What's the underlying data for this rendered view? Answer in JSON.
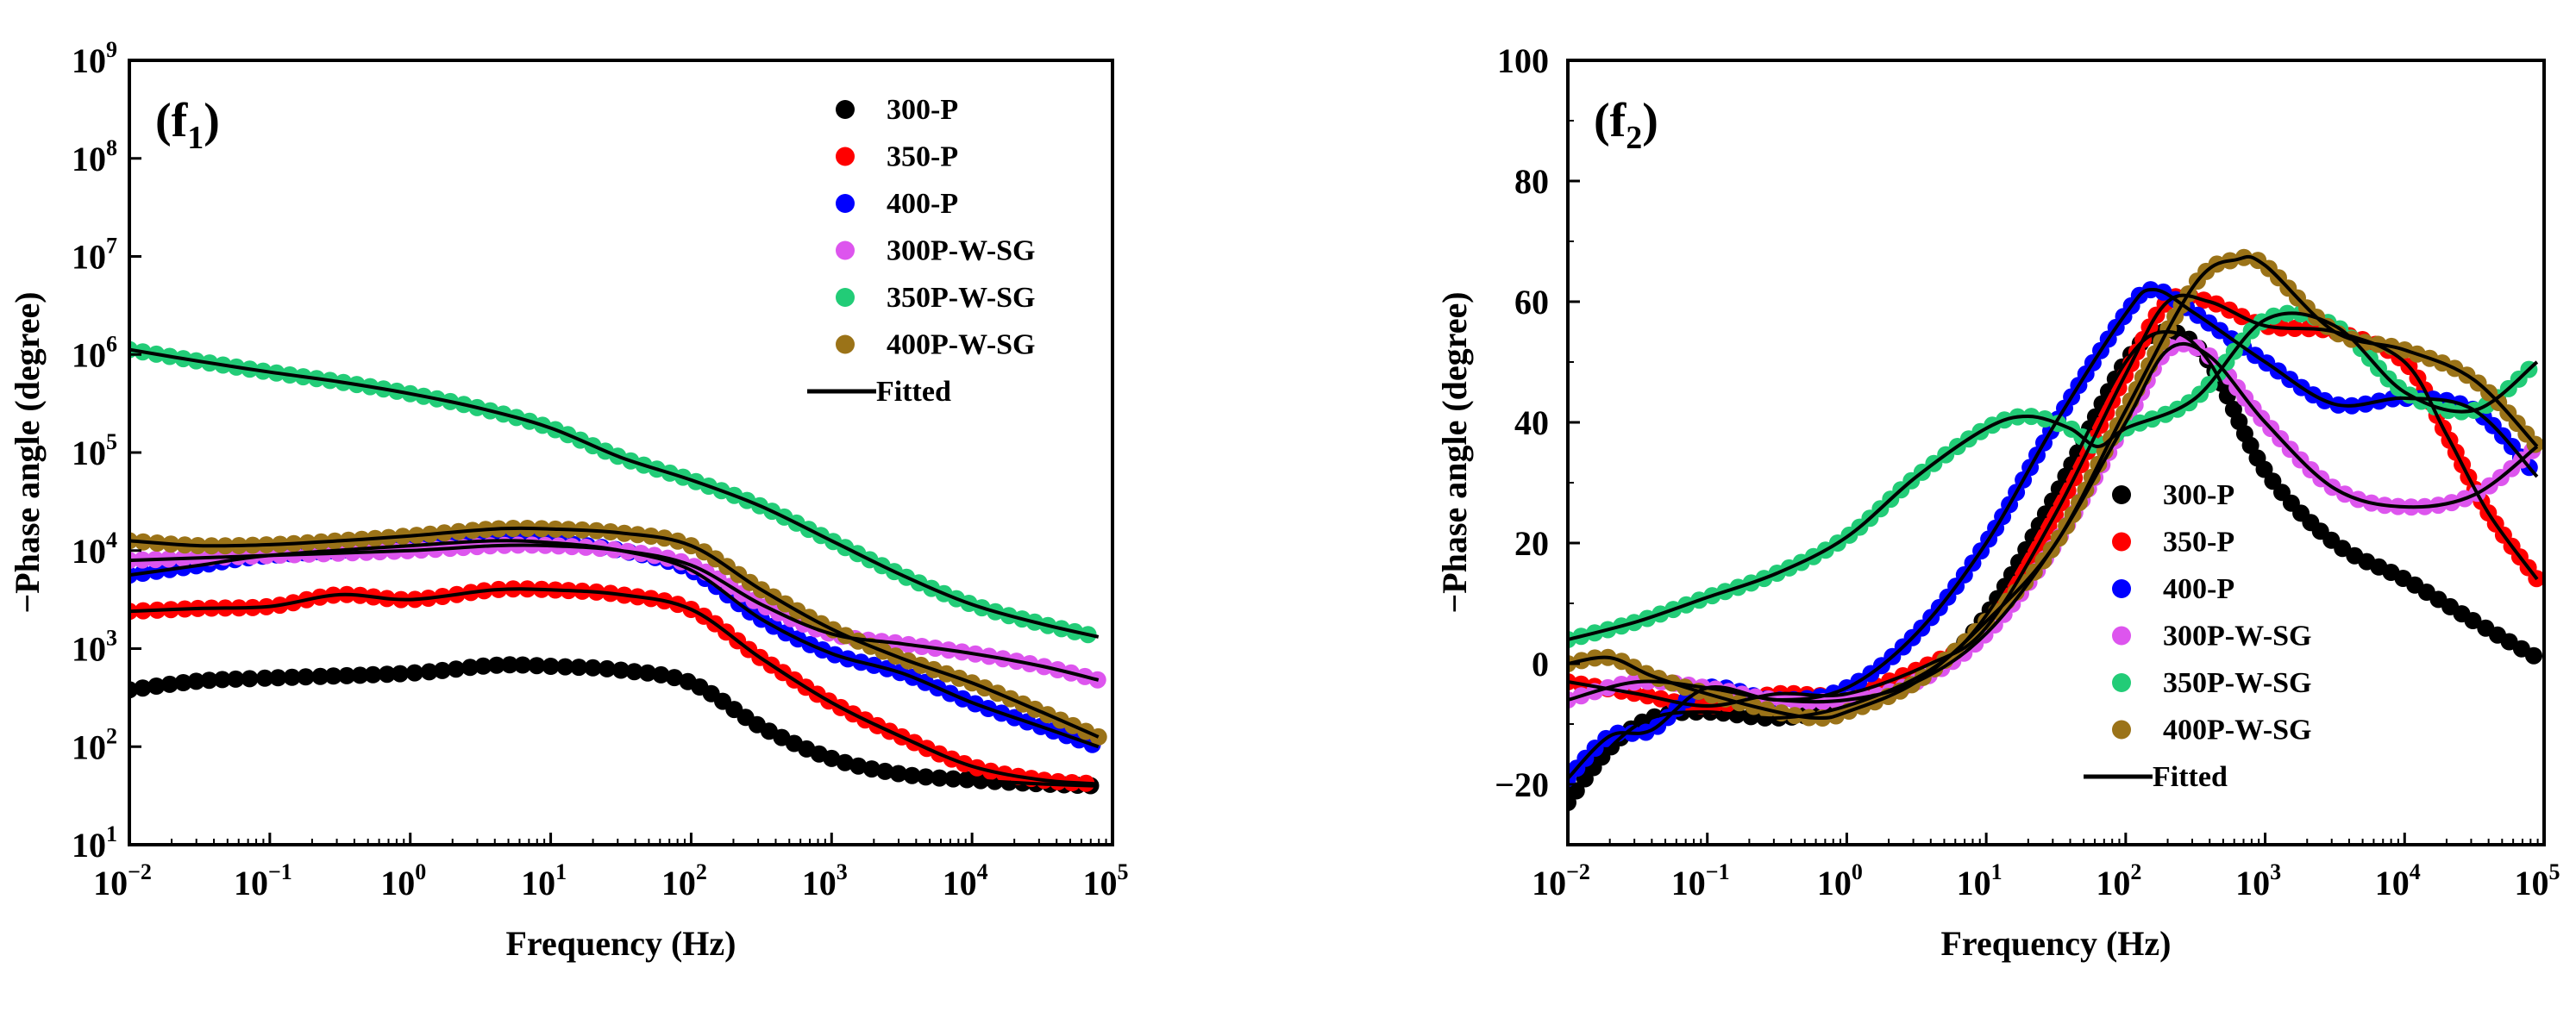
{
  "chart_data": [
    {
      "type": "scatter",
      "panel_label_main": "(f",
      "panel_label_sub": "1",
      "panel_label_end": ")",
      "xlabel": "Frequency (Hz)",
      "ylabel": "−Phase angle (degree)",
      "x_scale": "log",
      "y_scale": "log",
      "xlim_exp": [
        -2,
        5
      ],
      "ylim_exp": [
        1,
        9
      ],
      "x_ticks": [
        {
          "base": "10",
          "exp": "−2"
        },
        {
          "base": "10",
          "exp": "−1"
        },
        {
          "base": "10",
          "exp": "0"
        },
        {
          "base": "10",
          "exp": "1"
        },
        {
          "base": "10",
          "exp": "2"
        },
        {
          "base": "10",
          "exp": "3"
        },
        {
          "base": "10",
          "exp": "4"
        },
        {
          "base": "10",
          "exp": "5"
        }
      ],
      "y_ticks": [
        {
          "base": "10",
          "exp": "1"
        },
        {
          "base": "10",
          "exp": "2"
        },
        {
          "base": "10",
          "exp": "3"
        },
        {
          "base": "10",
          "exp": "4"
        },
        {
          "base": "10",
          "exp": "5"
        },
        {
          "base": "10",
          "exp": "6"
        },
        {
          "base": "10",
          "exp": "7"
        },
        {
          "base": "10",
          "exp": "8"
        },
        {
          "base": "10",
          "exp": "9"
        }
      ],
      "legend_position": "top-right",
      "legend": [
        "300-P",
        "350-P",
        "400-P",
        "300P-W-SG",
        "350P-W-SG",
        "400P-W-SG",
        "Fitted"
      ],
      "series": [
        {
          "name": "300-P",
          "color": "#000000",
          "logx": [
            -2,
            -1.5,
            -1,
            0,
            0.6,
            1,
            1.5,
            2,
            2.5,
            3,
            3.5,
            4,
            4.5,
            4.9
          ],
          "y_exp": [
            2.58,
            2.67,
            2.7,
            2.75,
            2.83,
            2.82,
            2.78,
            2.65,
            2.2,
            1.88,
            1.72,
            1.66,
            1.62,
            1.6
          ]
        },
        {
          "name": "350-P",
          "color": "#ff0000",
          "logx": [
            -2,
            -1.5,
            -1,
            -0.5,
            0,
            0.6,
            1,
            1.5,
            2,
            2.5,
            3,
            3.5,
            4,
            4.5,
            4.9
          ],
          "y_exp": [
            3.38,
            3.41,
            3.43,
            3.55,
            3.5,
            3.6,
            3.6,
            3.55,
            3.4,
            2.9,
            2.45,
            2.1,
            1.8,
            1.66,
            1.62
          ]
        },
        {
          "name": "400-P",
          "color": "#0000ff",
          "logx": [
            -2,
            -1.5,
            -1,
            0,
            0.6,
            1,
            1.5,
            2,
            2.5,
            3,
            3.5,
            4,
            4.5,
            4.9
          ],
          "y_exp": [
            3.75,
            3.85,
            3.95,
            4.05,
            4.1,
            4.08,
            4.0,
            3.8,
            3.3,
            2.95,
            2.75,
            2.45,
            2.2,
            2.0
          ]
        },
        {
          "name": "300P-W-SG",
          "color": "#dd55ee",
          "logx": [
            -2,
            -1,
            0,
            0.6,
            1,
            1.5,
            2,
            2.5,
            3,
            3.5,
            4,
            4.5,
            4.9
          ],
          "y_exp": [
            3.9,
            3.95,
            4.0,
            4.05,
            4.05,
            4.0,
            3.85,
            3.45,
            3.15,
            3.05,
            2.95,
            2.82,
            2.68
          ]
        },
        {
          "name": "350P-W-SG",
          "color": "#22cc77",
          "logx": [
            -2,
            -1.5,
            -1,
            -0.5,
            0,
            0.5,
            1,
            1.5,
            2,
            2.5,
            3,
            3.5,
            4,
            4.5,
            4.9
          ],
          "y_exp": [
            6.05,
            5.93,
            5.82,
            5.72,
            5.6,
            5.45,
            5.25,
            4.95,
            4.72,
            4.45,
            4.1,
            3.75,
            3.45,
            3.25,
            3.12
          ]
        },
        {
          "name": "400P-W-SG",
          "color": "#9b7318",
          "logx": [
            -2,
            -1.5,
            -1,
            -0.5,
            0,
            0.6,
            1,
            1.5,
            2,
            2.5,
            3,
            3.5,
            4,
            4.5,
            4.9
          ],
          "y_exp": [
            4.1,
            4.05,
            4.06,
            4.1,
            4.15,
            4.22,
            4.22,
            4.18,
            4.05,
            3.6,
            3.2,
            2.9,
            2.65,
            2.35,
            2.1
          ]
        }
      ]
    },
    {
      "type": "scatter",
      "panel_label_main": "(f",
      "panel_label_sub": "2",
      "panel_label_end": ")",
      "xlabel": "Frequency (Hz)",
      "ylabel": "−Phase angle (degree)",
      "x_scale": "log",
      "y_scale": "linear",
      "xlim_exp": [
        -2,
        5
      ],
      "ylim": [
        -30,
        100
      ],
      "x_ticks": [
        {
          "base": "10",
          "exp": "−2"
        },
        {
          "base": "10",
          "exp": "−1"
        },
        {
          "base": "10",
          "exp": "0"
        },
        {
          "base": "10",
          "exp": "1"
        },
        {
          "base": "10",
          "exp": "2"
        },
        {
          "base": "10",
          "exp": "3"
        },
        {
          "base": "10",
          "exp": "4"
        },
        {
          "base": "10",
          "exp": "5"
        }
      ],
      "y_ticks": [
        "−20",
        "0",
        "20",
        "40",
        "60",
        "80",
        "100"
      ],
      "y_tick_values": [
        -20,
        0,
        20,
        40,
        60,
        80,
        100
      ],
      "legend_position": "bottom-center",
      "legend": [
        "300-P",
        "350-P",
        "400-P",
        "300P-W-SG",
        "350P-W-SG",
        "400P-W-SG",
        "Fitted"
      ],
      "series": [
        {
          "name": "300-P",
          "color": "#000000",
          "logx": [
            -2,
            -1.7,
            -1.4,
            -1,
            -0.5,
            0,
            0.6,
            1,
            1.5,
            2,
            2.3,
            2.6,
            3,
            3.5,
            4,
            4.5,
            4.95
          ],
          "values": [
            -23,
            -14,
            -9,
            -8,
            -9,
            -7,
            -1,
            8,
            28,
            50,
            55,
            50,
            32,
            20,
            14,
            7,
            1
          ]
        },
        {
          "name": "350-P",
          "color": "#ff0000",
          "logx": [
            -2,
            -1.5,
            -1,
            -0.5,
            0,
            0.6,
            1,
            1.5,
            2,
            2.3,
            2.6,
            3,
            3.5,
            4,
            4.3,
            4.6,
            4.95
          ],
          "values": [
            -3,
            -5,
            -7,
            -5,
            -5,
            0,
            6,
            25,
            48,
            60,
            60,
            56,
            55,
            50,
            38,
            25,
            14
          ]
        },
        {
          "name": "400-P",
          "color": "#0000ff",
          "logx": [
            -2,
            -1.7,
            -1.4,
            -1,
            -0.5,
            0,
            0.5,
            1,
            1.5,
            2,
            2.2,
            2.5,
            3,
            3.5,
            4,
            4.5,
            4.95
          ],
          "values": [
            -19,
            -12,
            -11,
            -4,
            -6,
            -4,
            5,
            20,
            40,
            58,
            62,
            58,
            50,
            43,
            44,
            42,
            31
          ]
        },
        {
          "name": "300P-W-SG",
          "color": "#dd55ee",
          "logx": [
            -2,
            -1.5,
            -1,
            -0.5,
            0,
            0.5,
            1,
            1.5,
            2,
            2.3,
            2.6,
            3,
            3.5,
            4,
            4.5,
            4.95
          ],
          "values": [
            -6,
            -3,
            -4,
            -6,
            -6,
            -3,
            5,
            20,
            40,
            52,
            51,
            40,
            29,
            26,
            28,
            36
          ]
        },
        {
          "name": "350P-W-SG",
          "color": "#22cc77",
          "logx": [
            -2,
            -1.5,
            -1,
            -0.5,
            0,
            0.5,
            1,
            1.3,
            1.6,
            1.8,
            2,
            2.5,
            3,
            3.5,
            4,
            4.5,
            4.95
          ],
          "values": [
            4,
            7,
            11,
            15,
            21,
            31,
            39,
            41,
            39,
            36,
            39,
            44,
            57,
            56,
            45,
            42,
            50
          ]
        },
        {
          "name": "400P-W-SG",
          "color": "#9b7318",
          "logx": [
            -2,
            -1.7,
            -1.4,
            -1,
            -0.5,
            -0.2,
            0,
            0.5,
            1,
            1.5,
            2,
            2.5,
            2.8,
            3,
            3.5,
            4,
            4.5,
            4.95
          ],
          "values": [
            0,
            1,
            -2,
            -5,
            -8,
            -9,
            -8,
            -3,
            7,
            20,
            42,
            63,
            67,
            66,
            55,
            52,
            47,
            36
          ]
        }
      ]
    }
  ]
}
